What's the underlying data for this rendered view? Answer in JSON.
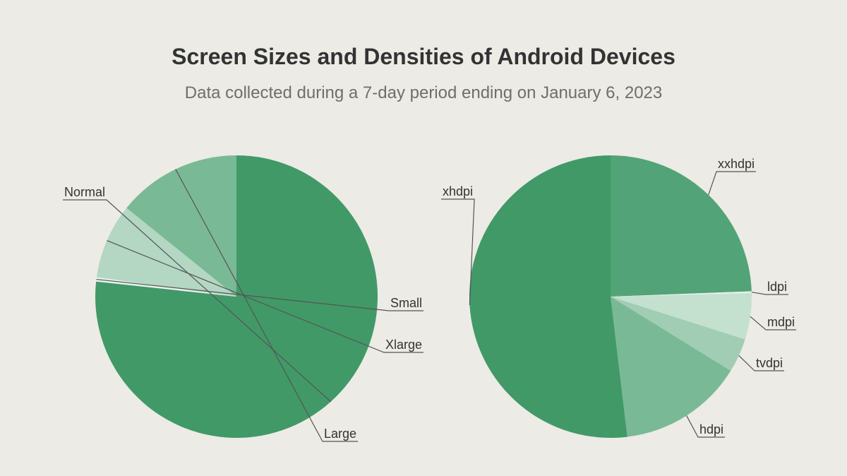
{
  "title": "Screen Sizes and Densities of Android Devices",
  "subtitle": "Data collected during a 7-day period ending on January 6, 2023",
  "chart_data": [
    {
      "type": "pie",
      "labels": [
        "Normal",
        "Small",
        "Xlarge",
        "Large"
      ],
      "values": [
        76.7,
        0.5,
        8.6,
        14.2
      ],
      "colors": [
        "#419968",
        "#e8f1eb",
        "#b3d7c2",
        "#7ab995"
      ]
    },
    {
      "type": "pie",
      "labels": [
        "xxhdpi",
        "ldpi",
        "mdpi",
        "tvdpi",
        "hdpi",
        "xhdpi"
      ],
      "values": [
        24.4,
        0.2,
        5.3,
        3.9,
        14.3,
        51.9
      ],
      "colors": [
        "#52a478",
        "#e8f1eb",
        "#c4e1d0",
        "#a0cdb3",
        "#7ab995",
        "#419968"
      ]
    }
  ]
}
